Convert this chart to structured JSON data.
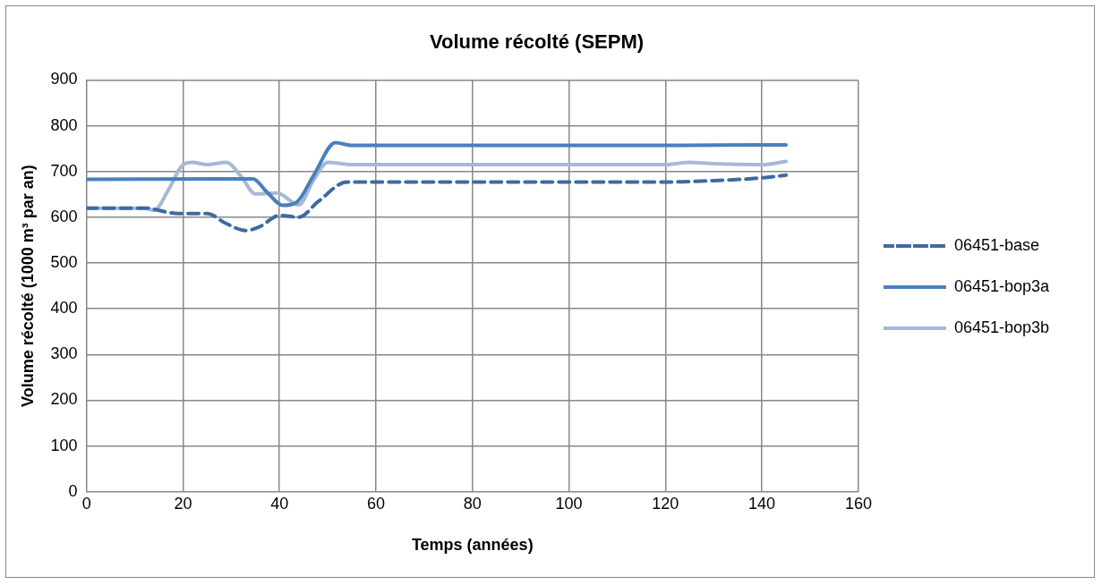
{
  "chart_data": {
    "type": "line",
    "title": "Volume récolté (SEPM)",
    "xlabel": "Temps (années)",
    "ylabel": "Volume récolté (1000 m³ par an)",
    "xlim": [
      0,
      160
    ],
    "xticks": [
      0,
      20,
      40,
      60,
      80,
      100,
      120,
      140,
      160
    ],
    "ylim": [
      0,
      900
    ],
    "yticks": [
      0,
      100,
      200,
      300,
      400,
      500,
      600,
      700,
      800,
      900
    ],
    "grid": true,
    "legend": "right",
    "marker": "none",
    "series": [
      {
        "name": "06451-base",
        "color": "#3d6aa0",
        "line_style": "dashed",
        "x": [
          0,
          12,
          19,
          25,
          29,
          33,
          36,
          40,
          44,
          48,
          54,
          60,
          80,
          100,
          120,
          130,
          140,
          145
        ],
        "values": [
          620,
          620,
          608,
          608,
          586,
          571,
          580,
          604,
          600,
          634,
          677,
          677,
          677,
          677,
          677,
          680,
          686,
          692
        ]
      },
      {
        "name": "06451-bop3a",
        "color": "#4a7fbd",
        "line_style": "solid",
        "x": [
          0,
          31,
          34.5,
          37.4,
          40.7,
          43.6,
          47,
          51.6,
          55,
          80,
          100,
          120,
          140,
          145
        ],
        "values": [
          683,
          684,
          684,
          655,
          626,
          633,
          690,
          763,
          757,
          757,
          757,
          757,
          758,
          758
        ]
      },
      {
        "name": "06451-bop3b",
        "color": "#a6b8d6",
        "line_style": "solid",
        "x": [
          0,
          12,
          14,
          17,
          20,
          22,
          25,
          29,
          32,
          35,
          39.5,
          44,
          47,
          50,
          55,
          80,
          100,
          120,
          125,
          130,
          140,
          145
        ],
        "values": [
          620,
          620,
          615,
          660,
          715,
          720,
          715,
          720,
          690,
          651,
          653,
          627,
          680,
          720,
          715,
          715,
          715,
          715,
          720,
          717,
          715,
          722
        ]
      }
    ]
  }
}
